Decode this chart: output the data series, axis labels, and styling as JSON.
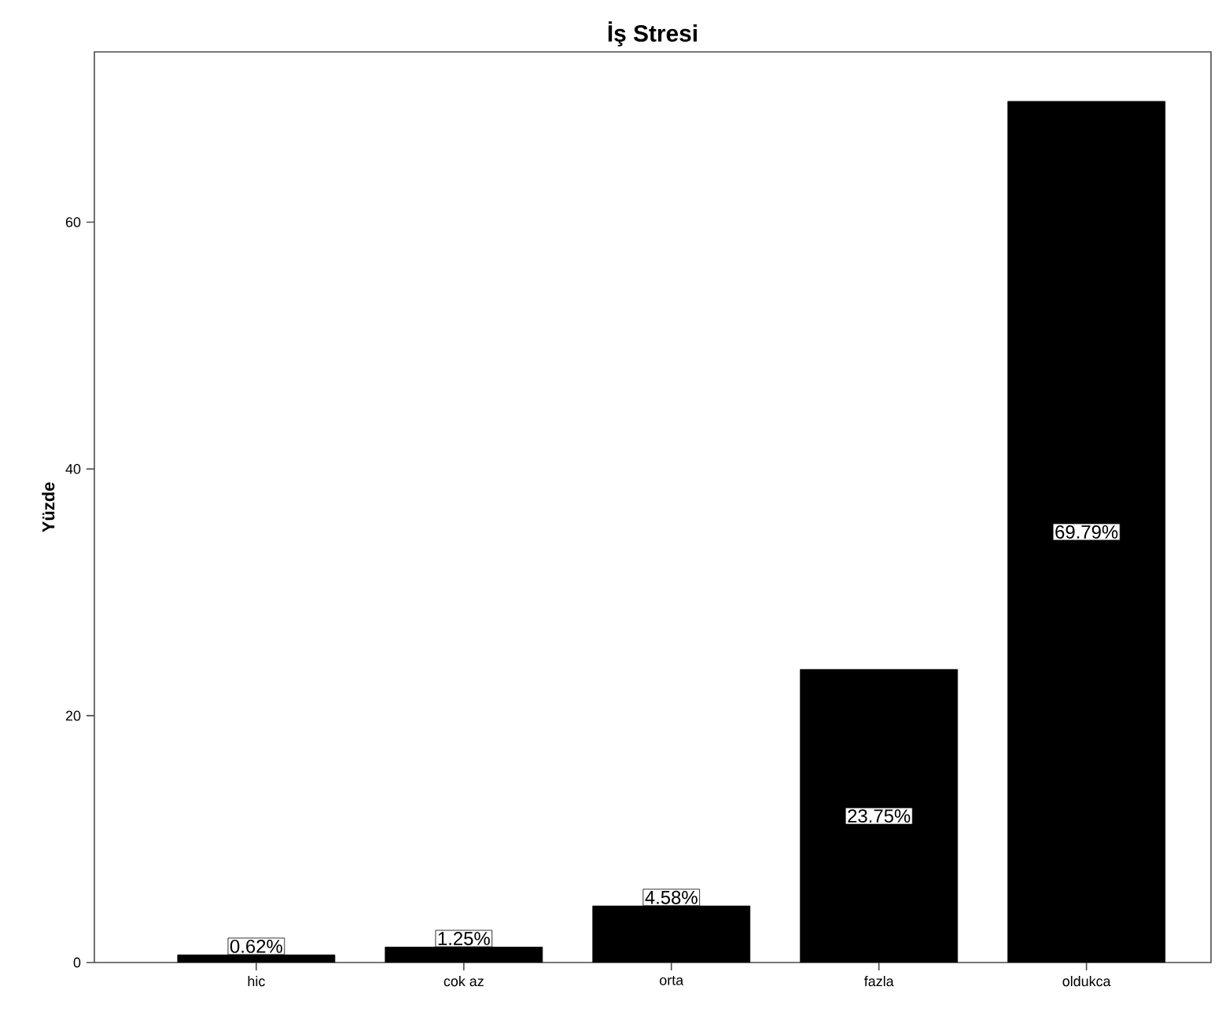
{
  "chart_data": {
    "type": "bar",
    "title": "İş Stresi",
    "ylabel": "Yüzde",
    "categories": [
      "hic",
      "cok az",
      "orta",
      "fazla",
      "oldukca"
    ],
    "values": [
      0.62,
      1.25,
      4.58,
      23.75,
      69.79
    ],
    "value_labels": [
      "0.62%",
      "1.25%",
      "4.58%",
      "23.75%",
      "69.79%"
    ],
    "color": "#000000",
    "ylim": [
      0,
      73.8
    ],
    "yticks": [
      0,
      20,
      40,
      60
    ],
    "grid": false
  }
}
